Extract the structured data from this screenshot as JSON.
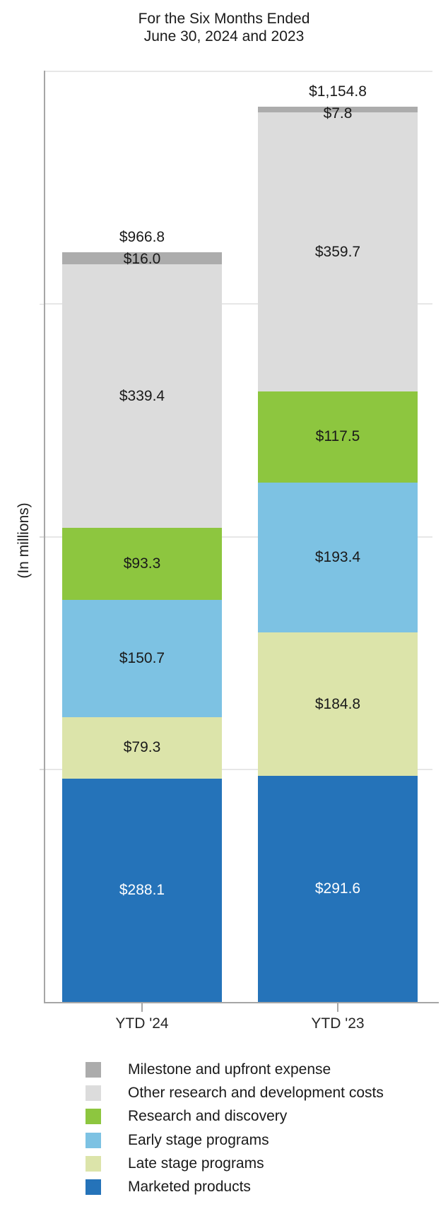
{
  "title": {
    "line1": "For the Six Months Ended",
    "line2": "June 30, 2024 and 2023"
  },
  "axes": {
    "y_label": "(In millions)"
  },
  "chart_data": {
    "type": "bar",
    "stacked": true,
    "title": "For the Six Months Ended June 30, 2024 and 2023",
    "xlabel": "",
    "ylabel": "(In millions)",
    "categories": [
      "YTD '24",
      "YTD '23"
    ],
    "totals": [
      966.8,
      1154.8
    ],
    "total_labels": [
      "$966.8",
      "$1,154.8"
    ],
    "series": [
      {
        "key": "marketed-products",
        "name": "Marketed products",
        "color": "#2573B9",
        "label_color": "#ffffff",
        "values": [
          288.1,
          291.6
        ],
        "labels": [
          "$288.1",
          "$291.6"
        ]
      },
      {
        "key": "late-stage-programs",
        "name": "Late stage programs",
        "color": "#DCE4AA",
        "label_color": "#1a1a1a",
        "values": [
          79.3,
          184.8
        ],
        "labels": [
          "$79.3",
          "$184.8"
        ]
      },
      {
        "key": "early-stage-programs",
        "name": "Early stage programs",
        "color": "#7DC2E3",
        "label_color": "#1a1a1a",
        "values": [
          150.7,
          193.4
        ],
        "labels": [
          "$150.7",
          "$193.4"
        ]
      },
      {
        "key": "research-and-discovery",
        "name": "Research and discovery",
        "color": "#8DC63F",
        "label_color": "#1a1a1a",
        "values": [
          93.3,
          117.5
        ],
        "labels": [
          "$93.3",
          "$117.5"
        ]
      },
      {
        "key": "other-research-development",
        "name": "Other research and development costs",
        "color": "#DCDCDC",
        "label_color": "#1a1a1a",
        "values": [
          339.4,
          359.7
        ],
        "labels": [
          "$339.4",
          "$359.7"
        ]
      },
      {
        "key": "milestone-upfront-expense",
        "name": "Milestone and upfront expense",
        "color": "#ACACAC",
        "label_color": "#1a1a1a",
        "values": [
          16.0,
          7.8
        ],
        "labels": [
          "$16.0",
          "$7.8"
        ]
      }
    ],
    "ylim": [
      0,
      1200
    ],
    "gridline_values": [
      300,
      600,
      900,
      1200
    ],
    "grid": true,
    "y_tick_labels_shown": false,
    "legend_position": "bottom"
  },
  "legend": {
    "items": [
      {
        "key": "milestone-upfront-expense",
        "label": "Milestone and upfront expense",
        "color": "#ACACAC"
      },
      {
        "key": "other-research-development",
        "label": "Other research and development costs",
        "color": "#DCDCDC"
      },
      {
        "key": "research-and-discovery",
        "label": "Research and discovery",
        "color": "#8DC63F"
      },
      {
        "key": "early-stage-programs",
        "label": "Early stage programs",
        "color": "#7DC2E3"
      },
      {
        "key": "late-stage-programs",
        "label": "Late stage programs",
        "color": "#DCE4AA"
      },
      {
        "key": "marketed-products",
        "label": "Marketed products",
        "color": "#2573B9"
      }
    ]
  }
}
